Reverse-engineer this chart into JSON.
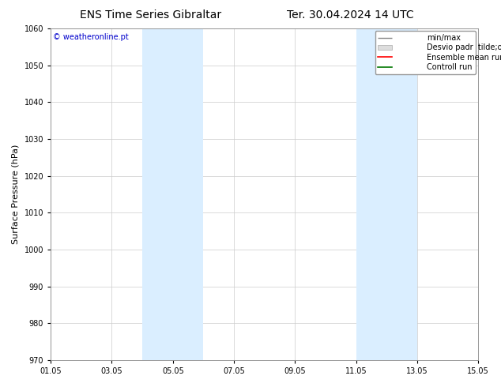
{
  "title_left": "ENS Time Series Gibraltar",
  "title_right": "Ter. 30.04.2024 14 UTC",
  "ylabel": "Surface Pressure (hPa)",
  "ylim": [
    970,
    1060
  ],
  "yticks": [
    970,
    980,
    990,
    1000,
    1010,
    1020,
    1030,
    1040,
    1050,
    1060
  ],
  "xlim": [
    0,
    14
  ],
  "xtick_labels": [
    "01.05",
    "03.05",
    "05.05",
    "07.05",
    "09.05",
    "11.05",
    "13.05",
    "15.05"
  ],
  "xtick_positions": [
    0,
    2,
    4,
    6,
    8,
    10,
    12,
    14
  ],
  "shade_bands": [
    {
      "start": 3.0,
      "end": 4.0
    },
    {
      "start": 4.0,
      "end": 5.0
    },
    {
      "start": 10.0,
      "end": 11.0
    },
    {
      "start": 11.0,
      "end": 12.0
    }
  ],
  "shade_color": "#daeeff",
  "shade_alpha": 1.0,
  "watermark": "© weatheronline.pt",
  "watermark_color": "#0000cc",
  "legend_entries": [
    "min/max",
    "Desvio padr  tilde;o",
    "Ensemble mean run",
    "Controll run"
  ],
  "legend_colors": [
    "#888888",
    "#bbbbbb",
    "#ff0000",
    "#007700"
  ],
  "background_color": "#ffffff",
  "grid_color": "#cccccc",
  "title_fontsize": 10,
  "tick_fontsize": 7,
  "ylabel_fontsize": 8,
  "legend_fontsize": 7,
  "watermark_fontsize": 7
}
